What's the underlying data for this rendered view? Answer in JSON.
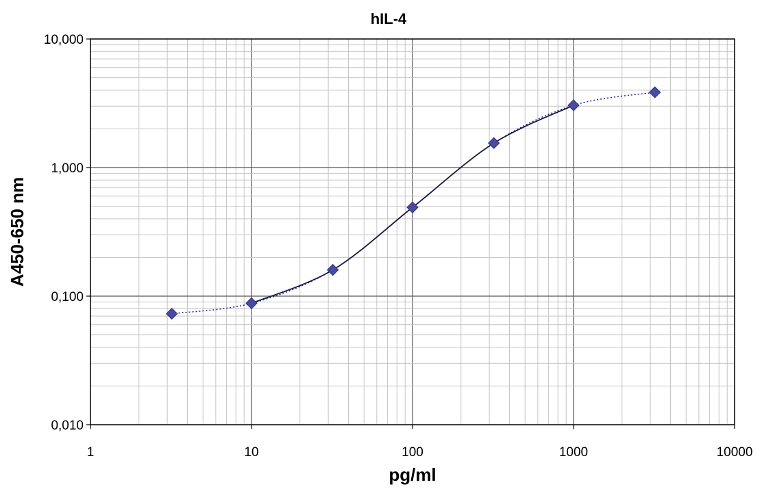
{
  "chart_data": {
    "type": "scatter",
    "title": "hIL-4",
    "xlabel": "pg/ml",
    "ylabel": "A450-650 nm",
    "x_scale": "log",
    "y_scale": "log",
    "xlim": [
      1,
      10000
    ],
    "ylim": [
      0.01,
      10
    ],
    "x_tick_labels": [
      "1",
      "10",
      "100",
      "1000",
      "10000"
    ],
    "y_tick_labels": [
      "0,010",
      "0,100",
      "1,000",
      "10,000"
    ],
    "grid": true,
    "legend": "none",
    "series": [
      {
        "x": [
          3.2,
          10,
          32,
          100,
          320,
          1000,
          3200
        ],
        "y": [
          0.073,
          0.088,
          0.16,
          0.49,
          1.55,
          3.05,
          3.85
        ],
        "marker": "diamond",
        "color": "#4a4aa0"
      }
    ],
    "trendlines": [
      {
        "style": "dotted",
        "color": "#2a2a8a"
      },
      {
        "style": "solid",
        "color": "#1a1a40"
      }
    ]
  }
}
